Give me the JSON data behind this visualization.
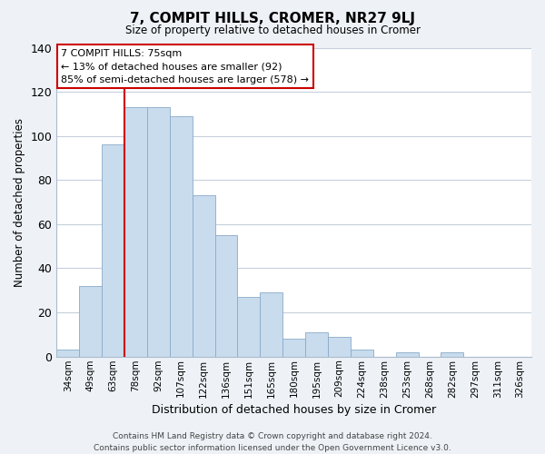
{
  "title": "7, COMPIT HILLS, CROMER, NR27 9LJ",
  "subtitle": "Size of property relative to detached houses in Cromer",
  "xlabel": "Distribution of detached houses by size in Cromer",
  "ylabel": "Number of detached properties",
  "bar_color": "#c8dcee",
  "bar_edge_color": "#8aaac8",
  "categories": [
    "34sqm",
    "49sqm",
    "63sqm",
    "78sqm",
    "92sqm",
    "107sqm",
    "122sqm",
    "136sqm",
    "151sqm",
    "165sqm",
    "180sqm",
    "195sqm",
    "209sqm",
    "224sqm",
    "238sqm",
    "253sqm",
    "268sqm",
    "282sqm",
    "297sqm",
    "311sqm",
    "326sqm"
  ],
  "values": [
    3,
    32,
    96,
    113,
    113,
    109,
    73,
    55,
    27,
    29,
    8,
    11,
    9,
    3,
    0,
    2,
    0,
    2,
    0,
    0,
    0
  ],
  "ylim": [
    0,
    140
  ],
  "yticks": [
    0,
    20,
    40,
    60,
    80,
    100,
    120,
    140
  ],
  "red_line_index": 3,
  "annotation_line1": "7 COMPIT HILLS: 75sqm",
  "annotation_line2": "← 13% of detached houses are smaller (92)",
  "annotation_line3": "85% of semi-detached houses are larger (578) →",
  "footer_line1": "Contains HM Land Registry data © Crown copyright and database right 2024.",
  "footer_line2": "Contains public sector information licensed under the Open Government Licence v3.0.",
  "red_line_color": "#cc0000",
  "background_color": "#eef2f7",
  "plot_bg_color": "#ffffff",
  "grid_color": "#c5d0dc"
}
